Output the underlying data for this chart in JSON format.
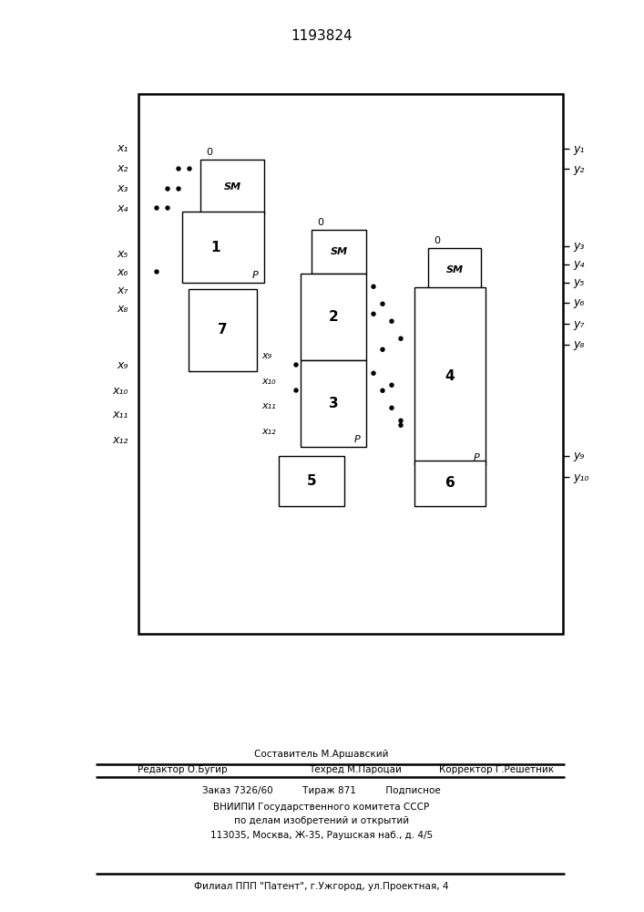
{
  "title": "1193824",
  "bg": "#ffffff",
  "fw": 7.07,
  "fh": 10.0,
  "footer": {
    "f1": "Составитель М.Аршавский",
    "f2l": "Редактор О.Бугир",
    "f2m": "Техред М.Пароцай",
    "f2r": "Корректор Г.Решетник",
    "f3": "Заказ 7326/60          Тираж 871          Подписное",
    "f4": "ВНИИПИ Государственного комитета СССР",
    "f5": "по делам изобретений и открытий",
    "f6": "113035, Москва, Ж-35, Раушская наб., д. 4/5",
    "f7": "Филиал ППП \"Патент\", г.Ужгород, ул.Проектная, 4"
  },
  "inputs": [
    "x₁",
    "x₂",
    "x₃",
    "x₄",
    "x₅",
    "x₆",
    "x₇",
    "x₈",
    "x₉",
    "x₁₀",
    "x₁₁",
    "x₁₂"
  ],
  "outputs": [
    "y₁",
    "y₂",
    "y₃",
    "y₄",
    "y₅",
    "y₆",
    "y₇",
    "y₈",
    "y₉",
    "y₁₀"
  ]
}
